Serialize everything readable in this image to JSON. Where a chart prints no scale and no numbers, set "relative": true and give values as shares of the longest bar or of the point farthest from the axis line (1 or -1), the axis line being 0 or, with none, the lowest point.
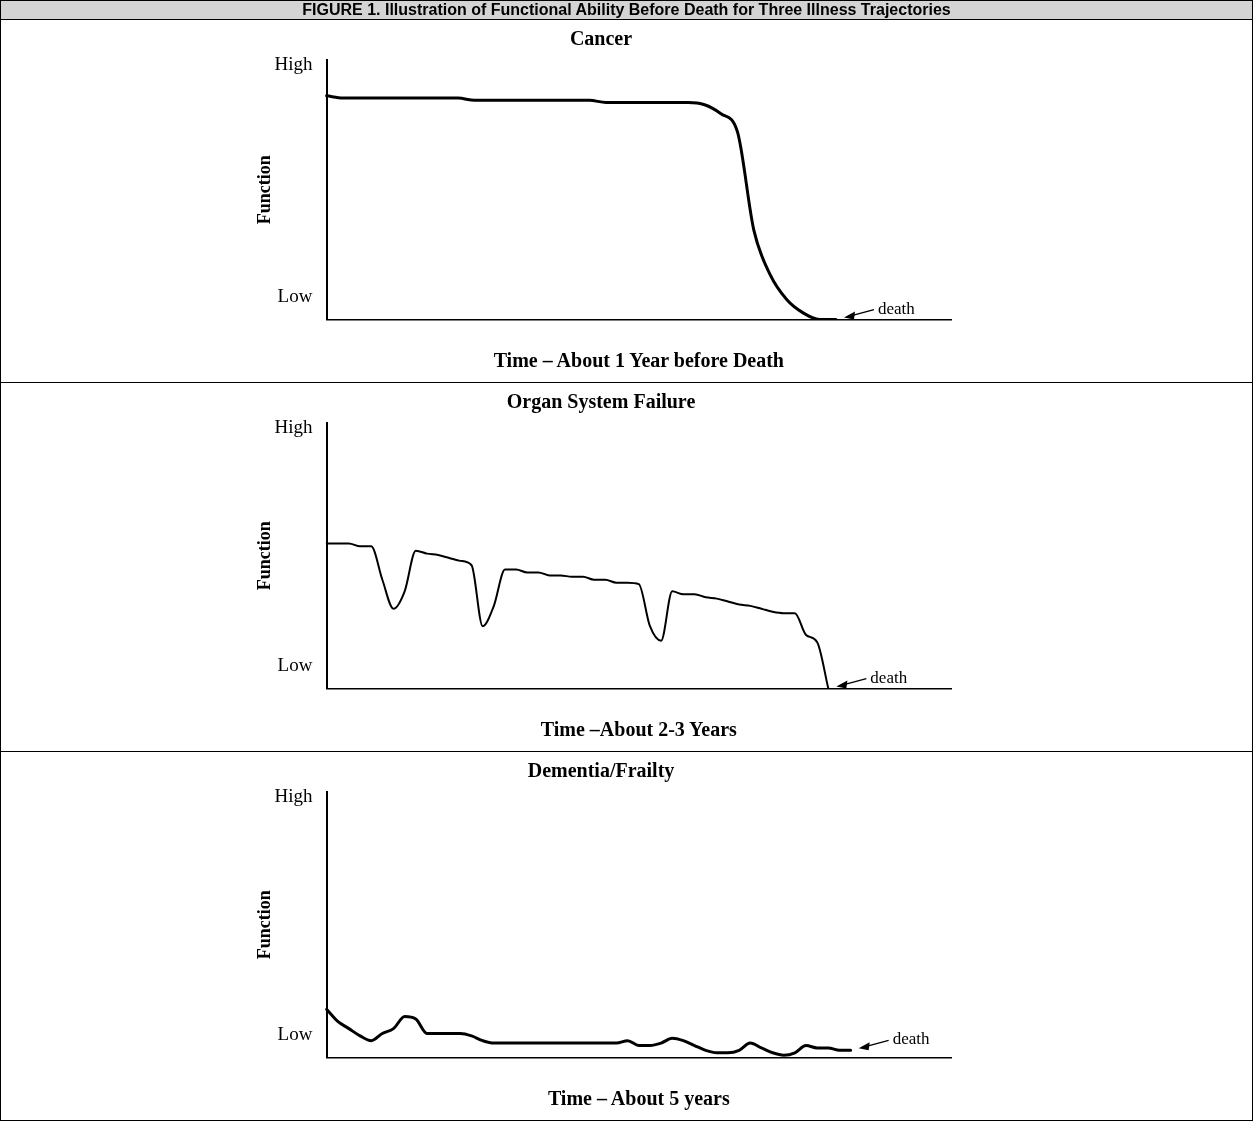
{
  "chart_data": [
    {
      "type": "line",
      "title": "Cancer",
      "xlabel": "Time – About 1 Year before Death",
      "ylabel": "Function",
      "relative": true,
      "annotations": [
        "FIGURE 1. Illustration of Functional Ability Before Death for Three Illness Trajectories",
        "High",
        "Low",
        "death"
      ],
      "categories": [
        null,
        null,
        null,
        null,
        null,
        null,
        null,
        null,
        null,
        null,
        null,
        null,
        null,
        null,
        null,
        null,
        null,
        null,
        null,
        null,
        null,
        null,
        null,
        null,
        null,
        null,
        null,
        null,
        null,
        null,
        null,
        null,
        null,
        null,
        null,
        null,
        null,
        null,
        null
      ],
      "series": [
        {
          "color": "#000000",
          "values": [
            1,
            0.99,
            0.99,
            0.99,
            0.99,
            0.99,
            0.99,
            0.99,
            0.99,
            0.98,
            0.98,
            0.98,
            0.98,
            0.98,
            0.98,
            0.98,
            0.98,
            0.97,
            0.97,
            0.97,
            0.97,
            0.97,
            0.97,
            0.96,
            0.92,
            0.84,
            0.4,
            0.2,
            0.09,
            0.03,
            0,
            0,
            null,
            null,
            null,
            null,
            null,
            null,
            null
          ]
        }
      ]
    },
    {
      "type": "line",
      "title": "Organ System Failure",
      "xlabel": "Time –About 2-3 Years",
      "ylabel": "Function",
      "relative": true,
      "annotations": [
        "High",
        "Low",
        "death"
      ],
      "categories": [
        null,
        null,
        null,
        null,
        null,
        null,
        null,
        null,
        null,
        null,
        null,
        null,
        null,
        null,
        null,
        null,
        null,
        null,
        null,
        null,
        null,
        null,
        null,
        null,
        null,
        null,
        null,
        null,
        null,
        null,
        null,
        null,
        null,
        null,
        null,
        null,
        null,
        null,
        null,
        null,
        null,
        null,
        null,
        null,
        null,
        null,
        null,
        null,
        null,
        null,
        null,
        null,
        null,
        null,
        null,
        null,
        null
      ],
      "series": [
        {
          "color": "#000000",
          "values": [
            1,
            1,
            1,
            0.98,
            0.98,
            0.75,
            0.55,
            0.67,
            0.95,
            0.93,
            0.92,
            0.9,
            0.88,
            0.85,
            0.43,
            0.57,
            0.82,
            0.82,
            0.8,
            0.8,
            0.78,
            0.78,
            0.77,
            0.77,
            0.75,
            0.75,
            0.73,
            0.73,
            0.72,
            0.43,
            0.33,
            0.67,
            0.65,
            0.65,
            0.63,
            0.62,
            0.6,
            0.58,
            0.57,
            0.55,
            0.53,
            0.52,
            0.52,
            0.37,
            0.32,
            0,
            null,
            null,
            null,
            null,
            null,
            null,
            null,
            null,
            null,
            null,
            null
          ]
        }
      ]
    },
    {
      "type": "line",
      "title": "Dementia/Frailty",
      "xlabel": "Time – About 5 years",
      "ylabel": "Function",
      "relative": true,
      "annotations": [
        "High",
        "Low",
        "death"
      ],
      "categories": [
        null,
        null,
        null,
        null,
        null,
        null,
        null,
        null,
        null,
        null,
        null,
        null,
        null,
        null,
        null,
        null,
        null,
        null,
        null,
        null,
        null,
        null,
        null,
        null,
        null,
        null,
        null,
        null,
        null,
        null,
        null,
        null,
        null,
        null,
        null,
        null,
        null,
        null,
        null,
        null,
        null,
        null,
        null,
        null,
        null,
        null,
        null,
        null,
        null,
        null,
        null,
        null,
        null,
        null,
        null,
        null,
        null
      ],
      "series": [
        {
          "color": "#000000",
          "values": [
            1,
            0.75,
            0.6,
            0.45,
            0.35,
            0.5,
            0.6,
            0.85,
            0.8,
            0.5,
            0.5,
            0.5,
            0.5,
            0.45,
            0.35,
            0.3,
            0.3,
            0.3,
            0.3,
            0.3,
            0.3,
            0.3,
            0.3,
            0.3,
            0.3,
            0.3,
            0.3,
            0.35,
            0.25,
            0.25,
            0.3,
            0.4,
            0.35,
            0.25,
            0.15,
            0.1,
            0.1,
            0.15,
            0.3,
            0.2,
            0.1,
            0.05,
            0.1,
            0.25,
            0.2,
            0.2,
            0.15,
            0.15,
            null,
            null,
            null,
            null,
            null,
            null,
            null,
            null,
            null
          ]
        }
      ]
    }
  ]
}
